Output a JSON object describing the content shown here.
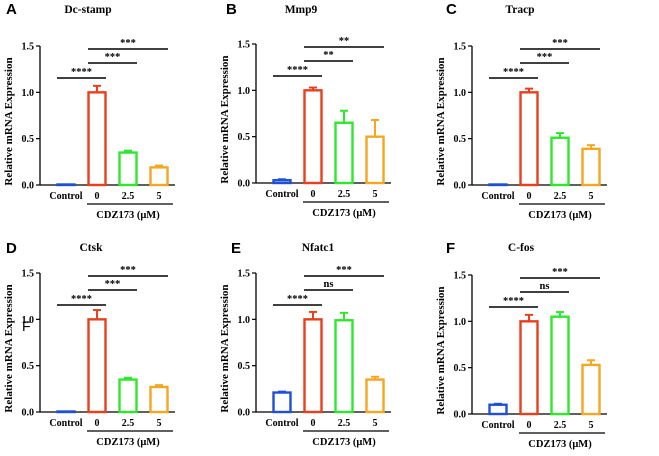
{
  "figure": {
    "stray_mark": "F",
    "axis_label_text": "CDZ173 (μM)"
  },
  "chart_data": [
    {
      "type": "bar",
      "panel_letter": "A",
      "title": "Dc-stamp",
      "ylabel": "Relative mRNA Expression",
      "xlabel": "CDZ173 (μM)",
      "categories": [
        "Control",
        "0",
        "2.5",
        "5"
      ],
      "values": [
        0.0,
        1.0,
        0.35,
        0.19
      ],
      "errors": [
        0.0,
        0.07,
        0.02,
        0.02
      ],
      "colors": [
        "#1f4fd8",
        "#e8401c",
        "#2ee82e",
        "#f5a623"
      ],
      "ylim": [
        0,
        1.5
      ],
      "yticks": [
        "0.0",
        "0.5",
        "1.0",
        "1.5"
      ],
      "significance": [
        {
          "from": 0,
          "to": 1,
          "label": "****"
        },
        {
          "from": 1,
          "to": 2,
          "label": "***"
        },
        {
          "from": 1,
          "to": 3,
          "label": "***"
        }
      ]
    },
    {
      "type": "bar",
      "panel_letter": "B",
      "title": "Mmp9",
      "ylabel": "Relative mRNA Expression",
      "xlabel": "CDZ173 (μM)",
      "categories": [
        "Control",
        "0",
        "2.5",
        "5"
      ],
      "values": [
        0.03,
        1.0,
        0.65,
        0.5
      ],
      "errors": [
        0.01,
        0.03,
        0.13,
        0.18
      ],
      "colors": [
        "#1f4fd8",
        "#e8401c",
        "#2ee82e",
        "#f5a623"
      ],
      "ylim": [
        0,
        1.5
      ],
      "yticks": [
        "0.0",
        "0.5",
        "1.0",
        "1.5"
      ],
      "significance": [
        {
          "from": 0,
          "to": 1,
          "label": "****"
        },
        {
          "from": 1,
          "to": 2,
          "label": "**"
        },
        {
          "from": 1,
          "to": 3,
          "label": "**"
        }
      ]
    },
    {
      "type": "bar",
      "panel_letter": "C",
      "title": "Tracp",
      "ylabel": "Relative mRNA Expression",
      "xlabel": "CDZ173 (μM)",
      "categories": [
        "Control",
        "0",
        "2.5",
        "5"
      ],
      "values": [
        0.0,
        1.0,
        0.51,
        0.39
      ],
      "errors": [
        0.0,
        0.04,
        0.05,
        0.04
      ],
      "colors": [
        "#1f4fd8",
        "#e8401c",
        "#2ee82e",
        "#f5a623"
      ],
      "ylim": [
        0,
        1.5
      ],
      "yticks": [
        "0.0",
        "0.5",
        "1.0",
        "1.5"
      ],
      "significance": [
        {
          "from": 0,
          "to": 1,
          "label": "****"
        },
        {
          "from": 1,
          "to": 2,
          "label": "***"
        },
        {
          "from": 1,
          "to": 3,
          "label": "***"
        }
      ]
    },
    {
      "type": "bar",
      "panel_letter": "D",
      "title": "Ctsk",
      "ylabel": "Relative mRNA Expression",
      "xlabel": "CDZ173 (μM)",
      "categories": [
        "Control",
        "0",
        "2.5",
        "5"
      ],
      "values": [
        0.0,
        1.0,
        0.35,
        0.27
      ],
      "errors": [
        0.0,
        0.1,
        0.02,
        0.02
      ],
      "colors": [
        "#1f4fd8",
        "#e8401c",
        "#2ee82e",
        "#f5a623"
      ],
      "ylim": [
        0,
        1.5
      ],
      "yticks": [
        "0.0",
        "0.5",
        "1.0",
        "1.5"
      ],
      "significance": [
        {
          "from": 0,
          "to": 1,
          "label": "****"
        },
        {
          "from": 1,
          "to": 2,
          "label": "***"
        },
        {
          "from": 1,
          "to": 3,
          "label": "***"
        }
      ]
    },
    {
      "type": "bar",
      "panel_letter": "E",
      "title": "Nfatc1",
      "ylabel": "Relative mRNA Expression",
      "xlabel": "CDZ173 (μM)",
      "categories": [
        "Control",
        "0",
        "2.5",
        "5"
      ],
      "values": [
        0.21,
        1.0,
        0.99,
        0.35
      ],
      "errors": [
        0.01,
        0.08,
        0.08,
        0.03
      ],
      "colors": [
        "#1f4fd8",
        "#e8401c",
        "#2ee82e",
        "#f5a623"
      ],
      "ylim": [
        0,
        1.5
      ],
      "yticks": [
        "0.0",
        "0.5",
        "1.0",
        "1.5"
      ],
      "significance": [
        {
          "from": 0,
          "to": 1,
          "label": "****"
        },
        {
          "from": 1,
          "to": 2,
          "label": "ns"
        },
        {
          "from": 1,
          "to": 3,
          "label": "***"
        }
      ]
    },
    {
      "type": "bar",
      "panel_letter": "F",
      "title": "C-fos",
      "ylabel": "Relative mRNA Expression",
      "xlabel": "CDZ173 (μM)",
      "categories": [
        "Control",
        "0",
        "2.5",
        "5"
      ],
      "values": [
        0.1,
        1.0,
        1.05,
        0.53
      ],
      "errors": [
        0.01,
        0.07,
        0.05,
        0.05
      ],
      "colors": [
        "#1f4fd8",
        "#e8401c",
        "#2ee82e",
        "#f5a623"
      ],
      "ylim": [
        0,
        1.5
      ],
      "yticks": [
        "0.0",
        "0.5",
        "1.0",
        "1.5"
      ],
      "significance": [
        {
          "from": 0,
          "to": 1,
          "label": "****"
        },
        {
          "from": 1,
          "to": 2,
          "label": "ns"
        },
        {
          "from": 1,
          "to": 3,
          "label": "***"
        }
      ]
    }
  ]
}
